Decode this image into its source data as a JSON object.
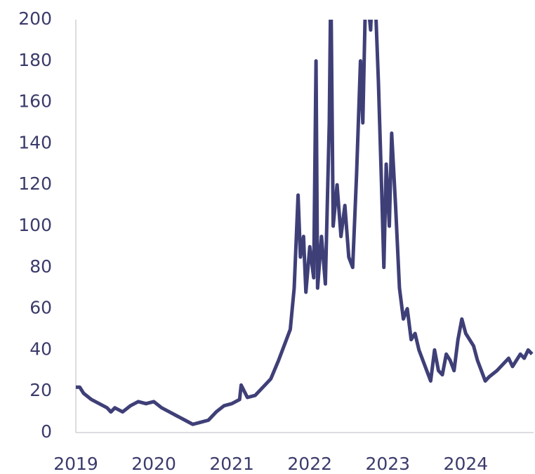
{
  "chart_data": {
    "type": "line",
    "x": [
      2019.0,
      2019.05,
      2019.1,
      2019.2,
      2019.3,
      2019.4,
      2019.45,
      2019.5,
      2019.6,
      2019.7,
      2019.8,
      2019.9,
      2020.0,
      2020.1,
      2020.2,
      2020.3,
      2020.4,
      2020.5,
      2020.6,
      2020.7,
      2020.8,
      2020.9,
      2021.0,
      2021.1,
      2021.12,
      2021.2,
      2021.3,
      2021.4,
      2021.5,
      2021.6,
      2021.7,
      2021.75,
      2021.8,
      2021.85,
      2021.88,
      2021.92,
      2021.95,
      2022.0,
      2022.05,
      2022.08,
      2022.1,
      2022.15,
      2022.2,
      2022.25,
      2022.27,
      2022.3,
      2022.35,
      2022.4,
      2022.45,
      2022.5,
      2022.55,
      2022.6,
      2022.65,
      2022.68,
      2022.72,
      2022.78,
      2022.82,
      2022.85,
      2022.88,
      2022.92,
      2022.95,
      2022.98,
      2023.02,
      2023.05,
      2023.1,
      2023.15,
      2023.2,
      2023.25,
      2023.3,
      2023.35,
      2023.4,
      2023.45,
      2023.55,
      2023.6,
      2023.65,
      2023.7,
      2023.75,
      2023.8,
      2023.85,
      2023.9,
      2023.95,
      2024.0,
      2024.1,
      2024.15,
      2024.2,
      2024.25,
      2024.3,
      2024.4,
      2024.5,
      2024.55,
      2024.6,
      2024.7,
      2024.75,
      2024.8,
      2024.85
    ],
    "series": [
      {
        "color": "#3f3f78",
        "values": [
          22,
          22,
          19,
          16,
          14,
          12,
          10,
          12,
          10,
          13,
          15,
          14,
          15,
          12,
          10,
          8,
          6,
          4,
          5,
          6,
          10,
          13,
          14,
          16,
          23,
          17,
          18,
          22,
          26,
          35,
          45,
          50,
          70,
          115,
          85,
          95,
          68,
          90,
          75,
          180,
          70,
          95,
          72,
          150,
          220,
          100,
          120,
          95,
          110,
          85,
          80,
          125,
          180,
          150,
          220,
          195,
          230,
          200,
          170,
          120,
          80,
          130,
          100,
          145,
          110,
          70,
          55,
          60,
          45,
          48,
          40,
          35,
          25,
          40,
          30,
          28,
          38,
          35,
          30,
          45,
          55,
          48,
          42,
          35,
          30,
          25,
          27,
          30,
          34,
          36,
          32,
          38,
          36,
          40,
          38
        ]
      }
    ],
    "xlim": [
      2019,
      2024.87
    ],
    "xticks": [
      2019,
      2020,
      2021,
      2022,
      2023,
      2024
    ],
    "ylim": [
      0,
      200
    ],
    "yticks": [
      0,
      20,
      40,
      60,
      80,
      100,
      120,
      140,
      160,
      180,
      200
    ]
  }
}
